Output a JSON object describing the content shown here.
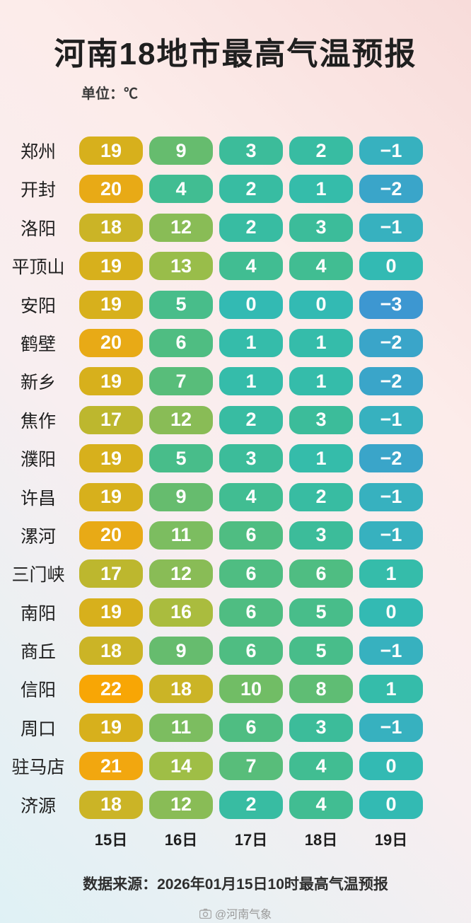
{
  "title": "河南18地市最高气温预报",
  "unit_label": "单位：℃",
  "footer_source": "数据来源：2026年01月15日10时最高气温预报",
  "watermark": "@河南气象",
  "chart_data": {
    "type": "heatmap",
    "title": "河南18地市最高气温预报",
    "unit": "℃",
    "columns": [
      "15日",
      "16日",
      "17日",
      "18日",
      "19日"
    ],
    "rows": [
      "郑州",
      "开封",
      "洛阳",
      "平顶山",
      "安阳",
      "鹤壁",
      "新乡",
      "焦作",
      "濮阳",
      "许昌",
      "漯河",
      "三门峡",
      "南阳",
      "商丘",
      "信阳",
      "周口",
      "驻马店",
      "济源"
    ],
    "values": [
      [
        19,
        9,
        3,
        2,
        -1
      ],
      [
        20,
        4,
        2,
        1,
        -2
      ],
      [
        18,
        12,
        2,
        3,
        -1
      ],
      [
        19,
        13,
        4,
        4,
        0
      ],
      [
        19,
        5,
        0,
        0,
        -3
      ],
      [
        20,
        6,
        1,
        1,
        -2
      ],
      [
        19,
        7,
        1,
        1,
        -2
      ],
      [
        17,
        12,
        2,
        3,
        -1
      ],
      [
        19,
        5,
        3,
        1,
        -2
      ],
      [
        19,
        9,
        4,
        2,
        -1
      ],
      [
        20,
        11,
        6,
        3,
        -1
      ],
      [
        17,
        12,
        6,
        6,
        1
      ],
      [
        19,
        16,
        6,
        5,
        0
      ],
      [
        18,
        9,
        6,
        5,
        -1
      ],
      [
        22,
        18,
        10,
        8,
        1
      ],
      [
        19,
        11,
        6,
        3,
        -1
      ],
      [
        21,
        14,
        7,
        4,
        0
      ],
      [
        18,
        12,
        2,
        4,
        0
      ]
    ],
    "color_scale": {
      "-3": "#3d97d1",
      "-2": "#3aa5c9",
      "-1": "#37b1bf",
      "0": "#33bab3",
      "1": "#35bcaa",
      "2": "#38bca2",
      "3": "#3cbc9a",
      "4": "#41bd92",
      "5": "#48bd8a",
      "6": "#4fbd82",
      "7": "#58bd7a",
      "8": "#5fbd74",
      "9": "#66bc6e",
      "10": "#71bd65",
      "11": "#7cbd60",
      "12": "#89bc56",
      "13": "#99bd4a",
      "14": "#9fbe46",
      "16": "#aabc3e",
      "17": "#bdb72e",
      "18": "#cbb426",
      "19": "#d7b01c",
      "20": "#e8aa16",
      "21": "#f2a70f",
      "22": "#f8a605"
    }
  }
}
